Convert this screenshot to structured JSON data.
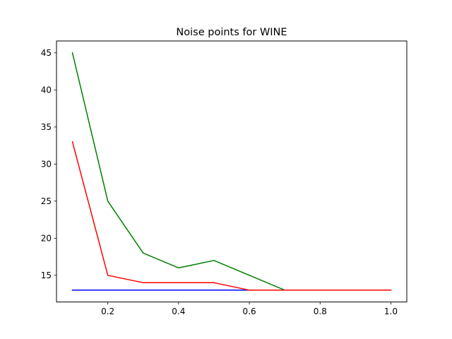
{
  "chart_data": {
    "type": "line",
    "title": "Noise points for WINE",
    "xlabel": "",
    "ylabel": "",
    "x": [
      0.1,
      0.2,
      0.3,
      0.4,
      0.5,
      0.6,
      0.7,
      0.8,
      0.9,
      1.0
    ],
    "xlim": [
      0.055,
      1.045
    ],
    "ylim": [
      11.4,
      46.6
    ],
    "xticks": [
      0.2,
      0.4,
      0.6,
      0.8,
      1.0
    ],
    "xtick_labels": [
      "0.2",
      "0.4",
      "0.6",
      "0.8",
      "1.0"
    ],
    "yticks": [
      15,
      20,
      25,
      30,
      35,
      40,
      45
    ],
    "ytick_labels": [
      "15",
      "20",
      "25",
      "30",
      "35",
      "40",
      "45"
    ],
    "grid": false,
    "series": [
      {
        "color": "#0000ff",
        "values": [
          13,
          13,
          13,
          13,
          13,
          13,
          13,
          13,
          13,
          13
        ]
      },
      {
        "color": "#008000",
        "values": [
          45,
          25,
          18,
          16,
          17,
          15,
          13,
          13,
          13,
          13
        ]
      },
      {
        "color": "#ff0000",
        "values": [
          33,
          15,
          14,
          14,
          14,
          13,
          13,
          13,
          13,
          13
        ]
      }
    ]
  }
}
